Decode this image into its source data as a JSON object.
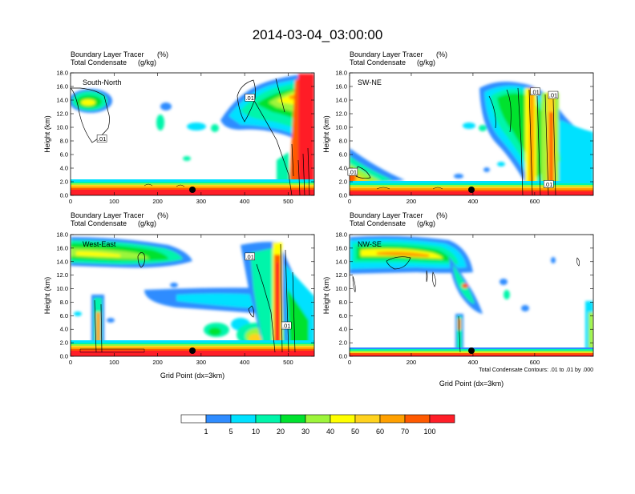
{
  "title": "2014-03-04_03:00:00",
  "note": "Total Condensate Contours: .01 to .01 by .000",
  "xlabel": "Grid Point (dx=3km)",
  "ylabel": "Height (km)",
  "colorbar": {
    "colors": [
      "#ffffff",
      "#2f8cff",
      "#00e1ff",
      "#00f5aa",
      "#00e22f",
      "#9df53a",
      "#ffff00",
      "#ffd21e",
      "#ffa000",
      "#ff5a00",
      "#ff1e28"
    ],
    "labels": [
      "1",
      "5",
      "10",
      "20",
      "30",
      "40",
      "50",
      "60",
      "70",
      "100"
    ]
  },
  "chart_data": [
    {
      "type": "heatmap",
      "title": "South-North",
      "subtitle_left": "Boundary Layer Tracer",
      "subtitle_right": "(%)",
      "subtitle2_left": "Total Condensate",
      "subtitle2_right": "(g/kg)",
      "x_ticks": [
        0,
        100,
        200,
        300,
        400,
        500
      ],
      "xlim": [
        0,
        560
      ],
      "y_ticks": [
        "0.0",
        "2.0",
        "4.0",
        "6.0",
        "8.0",
        "10.0",
        "12.0",
        "14.0",
        "16.0",
        "18.0"
      ],
      "ylim": [
        0,
        18
      ],
      "marker_x": 280,
      "contour_labels": [
        {
          "text": ".01",
          "x": 412,
          "y": 14.3
        },
        {
          "text": ".01",
          "x": 72,
          "y": 8.3
        }
      ]
    },
    {
      "type": "heatmap",
      "title": "SW-NE",
      "subtitle_left": "Boundary Layer Tracer",
      "subtitle_right": "(%)",
      "subtitle2_left": "Total Condensate",
      "subtitle2_right": "(g/kg)",
      "x_ticks": [
        0,
        200,
        400,
        600
      ],
      "xlim": [
        0,
        790
      ],
      "y_ticks": [
        "0.0",
        "2.0",
        "4.0",
        "6.0",
        "8.0",
        "10.0",
        "12.0",
        "14.0",
        "16.0",
        "18.0"
      ],
      "ylim": [
        0,
        18
      ],
      "marker_x": 395,
      "contour_labels": [
        {
          "text": ".01",
          "x": 602,
          "y": 15.2
        },
        {
          "text": ".01",
          "x": 660,
          "y": 14.7
        },
        {
          "text": ".01",
          "x": 645,
          "y": 1.6
        },
        {
          "text": ".01",
          "x": 10,
          "y": 3.4
        }
      ]
    },
    {
      "type": "heatmap",
      "title": "West-East",
      "subtitle_left": "Boundary Layer Tracer",
      "subtitle_right": "(%)",
      "subtitle2_left": "Total Condensate",
      "subtitle2_right": "(g/kg)",
      "x_ticks": [
        0,
        100,
        200,
        300,
        400,
        500
      ],
      "xlim": [
        0,
        560
      ],
      "y_ticks": [
        "0.0",
        "2.0",
        "4.0",
        "6.0",
        "8.0",
        "10.0",
        "12.0",
        "14.0",
        "16.0",
        "18.0"
      ],
      "ylim": [
        0,
        18
      ],
      "marker_x": 280,
      "contour_labels": [
        {
          "text": ".01",
          "x": 412,
          "y": 14.7
        },
        {
          "text": ".01",
          "x": 496,
          "y": 4.5
        }
      ]
    },
    {
      "type": "heatmap",
      "title": "NW-SE",
      "subtitle_left": "Boundary Layer Tracer",
      "subtitle_right": "(%)",
      "subtitle2_left": "Total Condensate",
      "subtitle2_right": "(g/kg)",
      "x_ticks": [
        0,
        200,
        400,
        600
      ],
      "xlim": [
        0,
        790
      ],
      "y_ticks": [
        "0.0",
        "2.0",
        "4.0",
        "6.0",
        "8.0",
        "10.0",
        "12.0",
        "14.0",
        "16.0",
        "18.0"
      ],
      "ylim": [
        0,
        18
      ],
      "marker_x": 395,
      "contour_labels": []
    }
  ]
}
